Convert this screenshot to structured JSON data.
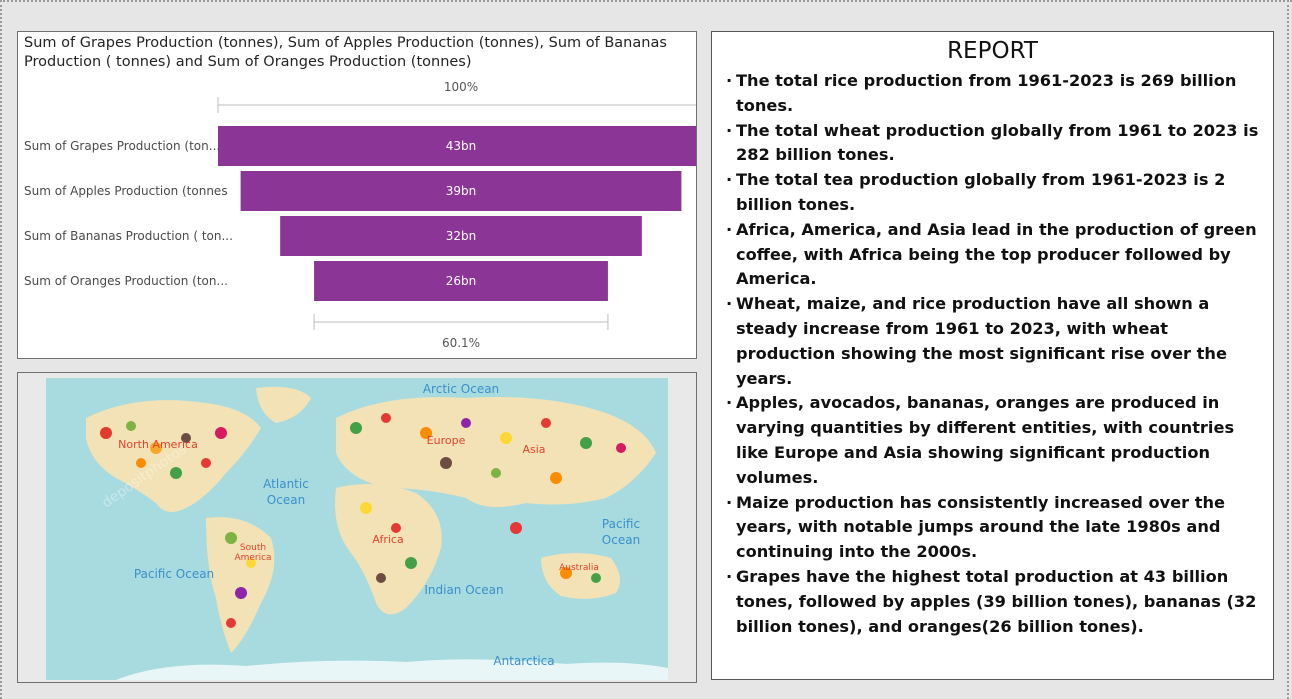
{
  "funnel": {
    "title": "Sum of Grapes Production (tonnes), Sum of Apples Production (tonnes), Sum of Bananas Production ( tonnes) and Sum of Oranges Production (tonnes)",
    "top_percent_label": "100%",
    "bottom_percent_label": "60.1%",
    "bar_color": "#8b3596"
  },
  "chart_data": {
    "type": "bar",
    "subtype": "funnel",
    "categories": [
      "Sum of Grapes Production (ton...",
      "Sum of Apples Production (tonnes",
      "Sum of Bananas Production ( ton...",
      "Sum of Oranges Production (ton..."
    ],
    "values": [
      43,
      39,
      32,
      26
    ],
    "value_labels": [
      "43bn",
      "39bn",
      "32bn",
      "26bn"
    ],
    "units": "bn"
  },
  "map": {
    "oceans": [
      "Arctic Ocean",
      "Atlantic",
      "Ocean",
      "Pacific Ocean",
      "Indian Ocean",
      "Pacific",
      "Ocean",
      "Antarctica"
    ],
    "continents": [
      "North America",
      "Europe",
      "Asia",
      "Africa",
      "South",
      "America",
      "Australia"
    ],
    "watermark": "depositphotos"
  },
  "report": {
    "title": "REPORT",
    "bullet_symbol": "·",
    "items": [
      "The total rice production from 1961-2023 is 269 billion tones.",
      "The total wheat production globally from 1961 to 2023 is 282 billion tones.",
      "The total tea production globally from 1961-2023 is 2 billion tones.",
      "Africa, America, and Asia lead in the production of green coffee, with Africa being the top producer followed by America.",
      "Wheat, maize, and rice production have all shown a steady increase from 1961 to 2023, with wheat production showing the most significant rise over the years.",
      "Apples, avocados, bananas, oranges are produced in varying quantities by different entities, with countries like Europe and Asia showing significant production volumes.",
      "Maize production has consistently increased over the years, with notable jumps around the late 1980s and continuing into the 2000s.",
      "Grapes have the highest total production at 43 billion tones, followed by apples (39  billion tones), bananas (32 billion tones), and oranges(26 billion tones)."
    ]
  }
}
